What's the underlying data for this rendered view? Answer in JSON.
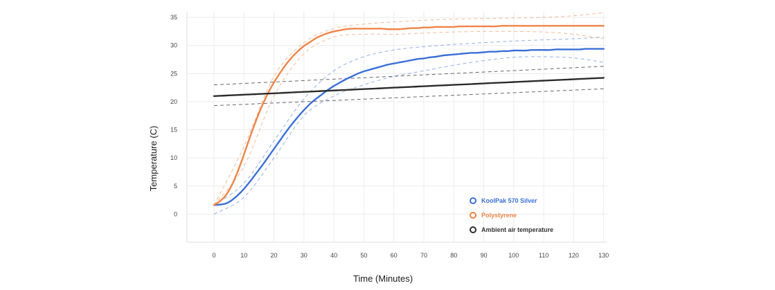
{
  "chart_data": {
    "type": "line",
    "title": "",
    "xlabel": "Time (Minutes)",
    "ylabel": "Temperature (C)",
    "xlim": [
      -9,
      131
    ],
    "ylim": [
      -5,
      36
    ],
    "x_ticks": [
      0,
      10,
      20,
      30,
      40,
      50,
      60,
      70,
      80,
      90,
      100,
      110,
      120,
      130
    ],
    "y_ticks": [
      0,
      5,
      10,
      15,
      20,
      25,
      30,
      35
    ],
    "grid": true,
    "legend_position": "bottom-right",
    "x": [
      0,
      2,
      4,
      6,
      8,
      10,
      12,
      14,
      16,
      18,
      20,
      22,
      24,
      26,
      28,
      30,
      32,
      34,
      36,
      38,
      40,
      42,
      44,
      46,
      48,
      50,
      52,
      54,
      56,
      58,
      60,
      62,
      64,
      66,
      68,
      70,
      72,
      74,
      76,
      78,
      80,
      82,
      84,
      86,
      88,
      90,
      92,
      94,
      96,
      98,
      100,
      102,
      104,
      106,
      108,
      110,
      112,
      114,
      116,
      118,
      120,
      122,
      124,
      126,
      128,
      130
    ],
    "series": [
      {
        "name": "KoolPak 570 Silver",
        "color": "#3a6fd8",
        "values": [
          1.6,
          1.7,
          1.9,
          2.5,
          3.4,
          4.5,
          5.8,
          7.2,
          8.6,
          10.1,
          11.6,
          13.1,
          14.6,
          16.0,
          17.3,
          18.5,
          19.6,
          20.5,
          21.3,
          22.1,
          22.8,
          23.4,
          24.0,
          24.5,
          25.0,
          25.4,
          25.7,
          26.0,
          26.3,
          26.6,
          26.8,
          27.0,
          27.2,
          27.4,
          27.6,
          27.7,
          27.9,
          28.0,
          28.2,
          28.3,
          28.4,
          28.5,
          28.6,
          28.7,
          28.7,
          28.8,
          28.9,
          28.9,
          29.0,
          29.0,
          29.1,
          29.1,
          29.1,
          29.2,
          29.2,
          29.2,
          29.2,
          29.3,
          29.3,
          29.3,
          29.3,
          29.3,
          29.4,
          29.4,
          29.4,
          29.4
        ]
      },
      {
        "name": "Polystyrene",
        "color": "#ef8447",
        "values": [
          1.6,
          2.3,
          3.4,
          5.2,
          7.7,
          10.6,
          13.7,
          16.6,
          19.2,
          21.5,
          23.4,
          25.1,
          26.6,
          27.9,
          29.0,
          29.9,
          30.6,
          31.3,
          31.8,
          32.2,
          32.5,
          32.7,
          32.9,
          33.0,
          33.0,
          33.0,
          33.0,
          33.0,
          33.0,
          32.9,
          32.9,
          32.9,
          33.0,
          33.1,
          33.1,
          33.2,
          33.2,
          33.3,
          33.3,
          33.3,
          33.3,
          33.4,
          33.4,
          33.4,
          33.4,
          33.4,
          33.4,
          33.4,
          33.5,
          33.5,
          33.5,
          33.5,
          33.5,
          33.5,
          33.5,
          33.5,
          33.5,
          33.5,
          33.5,
          33.5,
          33.5,
          33.5,
          33.5,
          33.5,
          33.5,
          33.5
        ]
      },
      {
        "name": "Ambient air temperature",
        "color": "#2b2b2b",
        "values": [
          21.0,
          21.05,
          21.1,
          21.15,
          21.2,
          21.25,
          21.3,
          21.35,
          21.4,
          21.45,
          21.5,
          21.55,
          21.6,
          21.65,
          21.7,
          21.75,
          21.8,
          21.85,
          21.9,
          21.95,
          22.0,
          22.05,
          22.1,
          22.15,
          22.2,
          22.25,
          22.3,
          22.35,
          22.4,
          22.45,
          22.5,
          22.55,
          22.6,
          22.65,
          22.7,
          22.75,
          22.8,
          22.85,
          22.9,
          22.95,
          23.0,
          23.05,
          23.1,
          23.15,
          23.2,
          23.25,
          23.3,
          23.35,
          23.4,
          23.45,
          23.5,
          23.55,
          23.6,
          23.65,
          23.7,
          23.75,
          23.8,
          23.85,
          23.9,
          23.95,
          24.0,
          24.05,
          24.1,
          24.15,
          24.2,
          24.25
        ]
      }
    ],
    "bands": [
      {
        "series": "KoolPak 570 Silver",
        "bound": "upper",
        "x": [
          0,
          10,
          20,
          30,
          40,
          50,
          60,
          70,
          80,
          90,
          100,
          110,
          120,
          130
        ],
        "values": [
          1.6,
          5.5,
          13.0,
          20.5,
          25.5,
          28.0,
          29.2,
          29.8,
          30.2,
          30.5,
          30.8,
          31.0,
          31.2,
          31.5
        ]
      },
      {
        "series": "KoolPak 570 Silver",
        "bound": "lower",
        "x": [
          0,
          10,
          20,
          30,
          40,
          50,
          60,
          70,
          80,
          90,
          100,
          110,
          120,
          130
        ],
        "values": [
          0.0,
          3.0,
          10.0,
          17.5,
          21.0,
          23.0,
          24.5,
          25.5,
          26.5,
          27.3,
          27.9,
          28.0,
          27.8,
          27.0
        ]
      },
      {
        "series": "Polystyrene",
        "bound": "upper",
        "x": [
          0,
          10,
          20,
          30,
          40,
          50,
          60,
          70,
          80,
          90,
          100,
          110,
          120,
          130
        ],
        "values": [
          1.6,
          12.0,
          24.5,
          30.5,
          33.0,
          33.8,
          34.2,
          34.5,
          34.7,
          34.8,
          34.9,
          35.0,
          35.3,
          35.8
        ]
      },
      {
        "series": "Polystyrene",
        "bound": "lower",
        "x": [
          0,
          10,
          20,
          30,
          40,
          50,
          60,
          70,
          80,
          90,
          100,
          110,
          120,
          130
        ],
        "values": [
          1.6,
          8.5,
          21.0,
          28.5,
          31.5,
          32.0,
          32.0,
          32.2,
          32.4,
          32.5,
          32.5,
          32.4,
          32.0,
          31.2
        ]
      },
      {
        "series": "Ambient air temperature",
        "bound": "upper",
        "x": [
          0,
          130
        ],
        "values": [
          23.0,
          26.3
        ]
      },
      {
        "series": "Ambient air temperature",
        "bound": "lower",
        "x": [
          0,
          130
        ],
        "values": [
          19.3,
          22.3
        ]
      }
    ]
  }
}
